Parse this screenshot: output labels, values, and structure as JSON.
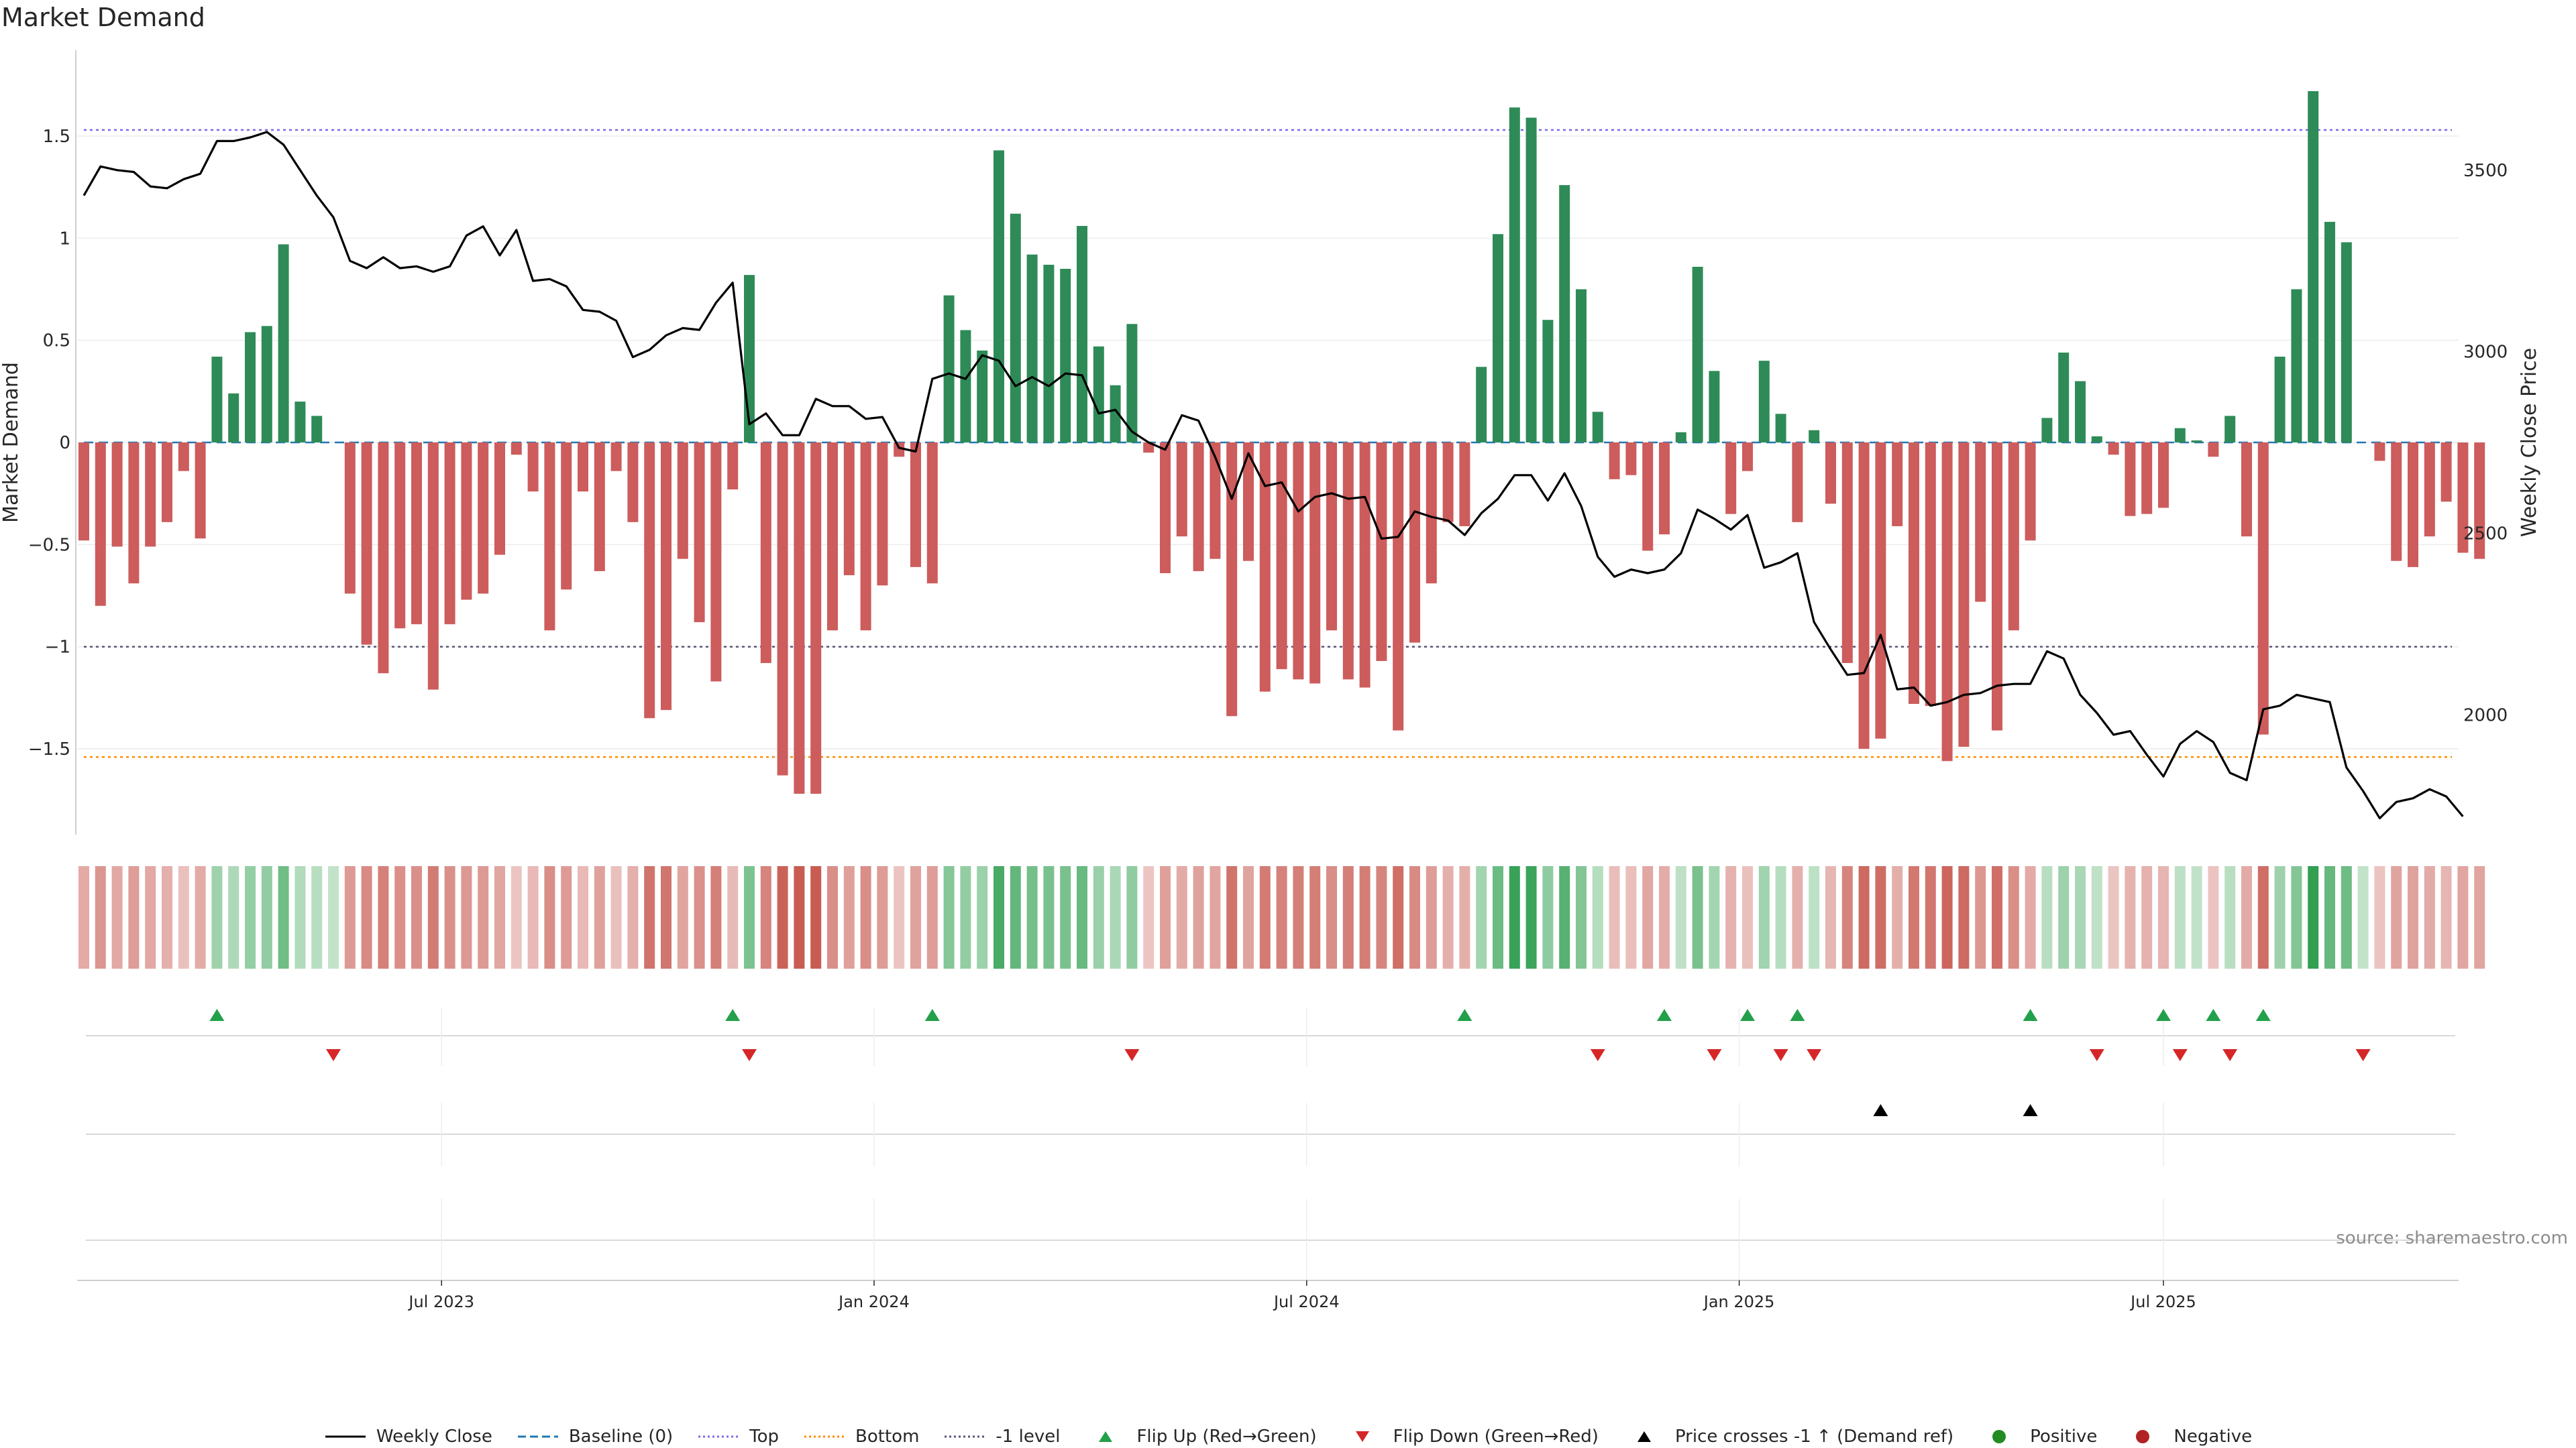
{
  "title": "Market Demand",
  "source_note": "source: sharemaestro.com",
  "colors": {
    "positive": "#2e8b57",
    "negative": "#cd5c5c",
    "price": "#000000",
    "baseline": "#1f77b4",
    "top": "#7b68ee",
    "bottom": "#ff8c00",
    "minus_one": "#555577",
    "flip_up": "#22a04a",
    "flip_down": "#d62728",
    "legend_positive": "#228b22",
    "legend_negative": "#b22222"
  },
  "chart_data": {
    "type": "bar+line",
    "title": "Market Demand",
    "ylabel": "Market Demand",
    "y2label": "Weekly Close Price",
    "ylim": [
      -1.92,
      1.92
    ],
    "y2lim": [
      1670,
      3830
    ],
    "yticks": [
      -1.5,
      -1,
      -0.5,
      0,
      0.5,
      1,
      1.5
    ],
    "ytick_labels": [
      "−1.5",
      "−1",
      "−0.5",
      "0",
      "0.5",
      "1",
      "1.5"
    ],
    "y2ticks": [
      2000,
      2500,
      3000,
      3500
    ],
    "y2tick_labels": [
      "2000",
      "2500",
      "3000",
      "3500"
    ],
    "levels": {
      "top": 1.53,
      "bottom": -1.54,
      "minus_one": -1.0,
      "baseline": 0
    },
    "date_ticks": [
      {
        "label": "Jul 2023",
        "week": 21.5
      },
      {
        "label": "Jan 2024",
        "week": 47.5
      },
      {
        "label": "Jul 2024",
        "week": 73.5
      },
      {
        "label": "Jan 2025",
        "week": 99.5
      },
      {
        "label": "Jul 2025",
        "week": 125
      }
    ],
    "series": [
      {
        "name": "Market Demand",
        "values": [
          -0.48,
          -0.8,
          -0.51,
          -0.69,
          -0.51,
          -0.39,
          -0.14,
          -0.47,
          0.42,
          0.24,
          0.54,
          0.57,
          0.97,
          0.2,
          0.13,
          0,
          -0.74,
          -0.99,
          -1.13,
          -0.91,
          -0.89,
          -1.21,
          -0.89,
          -0.77,
          -0.74,
          -0.55,
          -0.06,
          -0.24,
          -0.92,
          -0.72,
          -0.24,
          -0.63,
          -0.14,
          -0.39,
          -1.35,
          -1.31,
          -0.57,
          -0.88,
          -1.17,
          -0.23,
          0.82,
          -1.08,
          -1.63,
          -1.72,
          -1.72,
          -0.92,
          -0.65,
          -0.92,
          -0.7,
          -0.07,
          -0.61,
          -0.69,
          0.72,
          0.55,
          0.45,
          1.43,
          1.12,
          0.92,
          0.87,
          0.85,
          1.06,
          0.47,
          0.28,
          0.58,
          -0.05,
          -0.64,
          -0.46,
          -0.63,
          -0.57,
          -1.34,
          -0.58,
          -1.22,
          -1.11,
          -1.16,
          -1.18,
          -0.92,
          -1.16,
          -1.2,
          -1.07,
          -1.41,
          -0.98,
          -0.69,
          -0.39,
          -0.41,
          0.37,
          1.02,
          1.64,
          1.59,
          0.6,
          1.26,
          0.75,
          0.15,
          -0.18,
          -0.16,
          -0.53,
          -0.45,
          0.05,
          0.86,
          0.35,
          -0.35,
          -0.14,
          0.4,
          0.14,
          -0.39,
          0.06,
          -0.3,
          -1.08,
          -1.5,
          -1.45,
          -0.41,
          -1.28,
          -1.29,
          -1.56,
          -1.49,
          -0.78,
          -1.41,
          -0.92,
          -0.48,
          0.12,
          0.44,
          0.3,
          0.03,
          -0.06,
          -0.36,
          -0.35,
          -0.32,
          0.07,
          0.01,
          -0.07,
          0.13,
          -0.46,
          -1.43,
          0.42,
          0.75,
          1.72,
          1.08,
          0.98,
          0,
          -0.09,
          -0.58,
          -0.61,
          -0.46,
          -0.29,
          -0.54,
          -0.57
        ]
      },
      {
        "name": "Weekly Close",
        "values": [
          3430,
          3510,
          3500,
          3495,
          3455,
          3450,
          3475,
          3490,
          3580,
          3580,
          3590,
          3605,
          3570,
          3500,
          3430,
          3370,
          3250,
          3230,
          3260,
          3230,
          3235,
          3220,
          3235,
          3320,
          3345,
          3265,
          3335,
          3195,
          3200,
          3180,
          3115,
          3110,
          3085,
          2985,
          3005,
          3045,
          3065,
          3060,
          3135,
          3190,
          2800,
          2830,
          2770,
          2770,
          2870,
          2850,
          2850,
          2815,
          2820,
          2735,
          2725,
          2925,
          2940,
          2925,
          2990,
          2975,
          2905,
          2930,
          2905,
          2940,
          2935,
          2830,
          2840,
          2780,
          2750,
          2730,
          2825,
          2810,
          2710,
          2595,
          2720,
          2630,
          2640,
          2560,
          2600,
          2610,
          2595,
          2600,
          2485,
          2490,
          2560,
          2545,
          2535,
          2495,
          2555,
          2595,
          2660,
          2660,
          2590,
          2665,
          2575,
          2435,
          2380,
          2400,
          2390,
          2400,
          2445,
          2565,
          2540,
          2510,
          2550,
          2405,
          2420,
          2445,
          2255,
          2180,
          2110,
          2115,
          2220,
          2070,
          2075,
          2025,
          2035,
          2055,
          2060,
          2080,
          2085,
          2085,
          2175,
          2155,
          2055,
          2005,
          1945,
          1955,
          1890,
          1830,
          1920,
          1955,
          1925,
          1840,
          1820,
          2015,
          2025,
          2055,
          2045,
          2035,
          1855,
          1790,
          1715,
          1760,
          1770,
          1795,
          1775,
          1720
        ]
      }
    ],
    "flip_up_weeks": [
      8,
      39,
      51,
      83,
      95,
      100,
      103,
      117,
      125,
      128,
      131
    ],
    "flip_down_weeks": [
      15,
      40,
      63,
      91,
      98,
      102,
      104,
      121,
      126,
      129,
      137
    ],
    "price_cross_weeks": [
      108,
      117
    ]
  },
  "legend": [
    {
      "label": "Weekly Close",
      "kind": "line",
      "color": "#000000"
    },
    {
      "label": "Baseline (0)",
      "kind": "dash",
      "color": "#1f77b4"
    },
    {
      "label": "Top",
      "kind": "dot",
      "color": "#7b68ee"
    },
    {
      "label": "Bottom",
      "kind": "dot",
      "color": "#ff8c00"
    },
    {
      "label": "-1 level",
      "kind": "dot",
      "color": "#555577"
    },
    {
      "label": "Flip Up (Red→Green)",
      "kind": "tri-up",
      "color": "#22a04a"
    },
    {
      "label": "Flip Down (Green→Red)",
      "kind": "tri-down",
      "color": "#d62728"
    },
    {
      "label": "Price crosses -1 ↑ (Demand ref)",
      "kind": "tri-up",
      "color": "#000000"
    },
    {
      "label": "Positive",
      "kind": "circle",
      "color": "#228b22"
    },
    {
      "label": "Negative",
      "kind": "circle",
      "color": "#b22222"
    }
  ]
}
